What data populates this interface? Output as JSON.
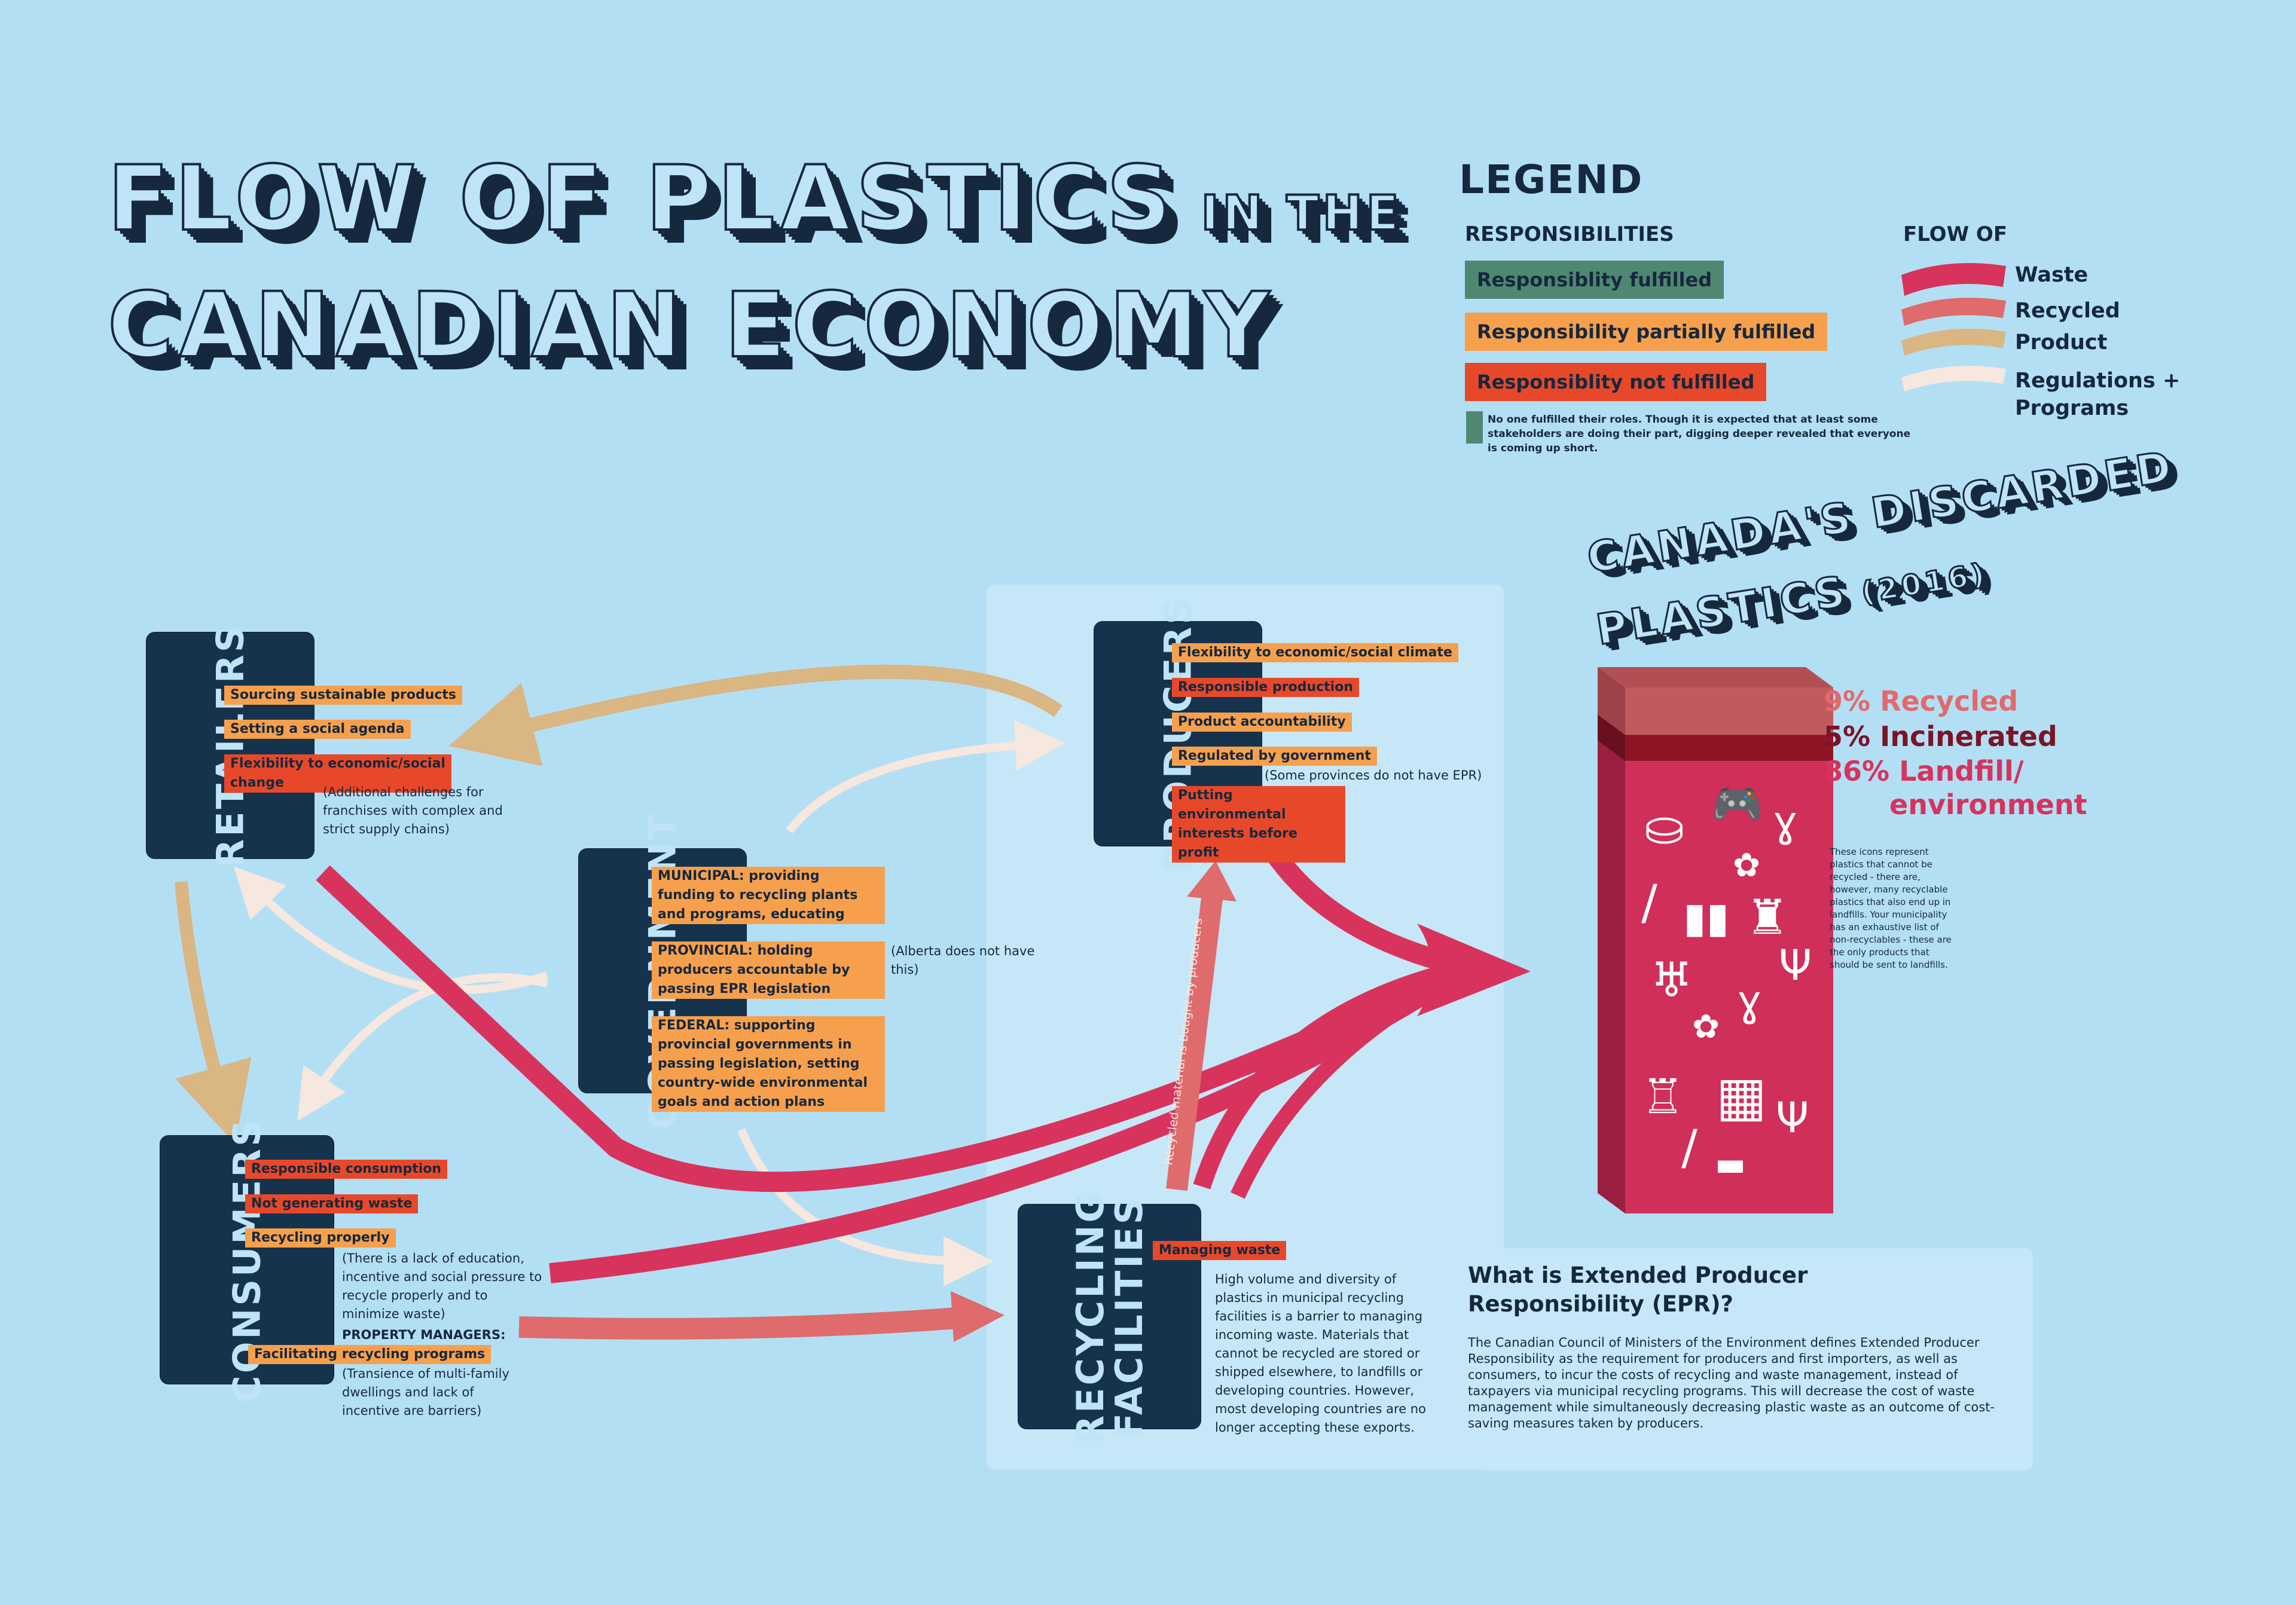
{
  "title": {
    "line1_main": "FLOW OF PLASTICS",
    "line1_small": "IN THE",
    "line2": "CANADIAN ECONOMY"
  },
  "legend": {
    "heading": "LEGEND",
    "responsibilities_heading": "RESPONSIBILITIES",
    "fulfilled": "Responsiblity fulfilled",
    "partially": "Responsibility partially  fulfilled",
    "not_fulfilled": "Responsiblity not fulfilled",
    "note": "No one fulfilled their roles. Though it is expected that at least some stakeholders are doing their part, digging deeper revealed that everyone is coming up short.",
    "flow_heading": "FLOW OF",
    "waste": "Waste",
    "recycled": "Recycled",
    "product": "Product",
    "regulations": "Regulations + Programs"
  },
  "colors": {
    "background": "#b3dff4",
    "fulfilled": "#4f8872",
    "partially": "#f6a04d",
    "not_fulfilled": "#e8482a",
    "waste": "#d7335d",
    "recycled": "#df6b6c",
    "product": "#d9b682",
    "regulations": "#f6e8de",
    "actor_box": "#16334d"
  },
  "retailers": {
    "label": "RETAILERS",
    "items": [
      "Sourcing sustainable products",
      "Setting a social agenda",
      "Flexibility to economic/social change"
    ],
    "note": "(Additional challenges for franchises with complex and strict supply chains)"
  },
  "producers": {
    "label": "PRODUCERS",
    "items": [
      "Flexibility to economic/social climate",
      "Responsible production",
      "Product accountability",
      "Regulated by government",
      "Putting environmental interests before profit"
    ],
    "note": "(Some provinces do not have EPR)"
  },
  "government": {
    "label": "GOVERNMENT",
    "municipal": "MUNICIPAL: providing funding to recycling plants and programs, educating",
    "provincial": "PROVINCIAL: holding producers accountable by passing EPR legislation",
    "provincial_note": "(Alberta does not have this)",
    "federal": "FEDERAL: supporting provincial governments in passing legislation, setting country-wide environmental goals and action plans"
  },
  "consumers": {
    "label": "CONSUMERS",
    "items": [
      "Responsible consumption",
      "Not generating waste",
      "Recycling properly"
    ],
    "note": "(There is a lack of education, incentive and social pressure to recycle properly and to minimize waste)",
    "pm_heading": "PROPERTY  MANAGERS:",
    "pm_item": "Facilitating recycling programs",
    "pm_note": "(Transience of multi-family dwellings and  lack of incentive are barriers)"
  },
  "recycling": {
    "label_line1": "RECYCLING",
    "label_line2": "FACILITIES",
    "item": "Managing waste",
    "note": "High volume and diversity of plastics in municipal recycling facilities is a barrier to managing incoming waste. Materials that cannot be recycled are stored or shipped elsewhere, to landfills or developing countries. However, most developing countries are no longer accepting these exports.",
    "arrow_text": "Recycled material is bought by producers"
  },
  "discarded": {
    "title_line1": "CANADA'S DISCARDED",
    "title_line2": "PLASTICS",
    "year": "(2016)",
    "recycled": "9% Recycled",
    "incinerated": "5% Incinerated",
    "landfill_1": "86% Landfill/",
    "landfill_2": "environment",
    "icons_note": "These icons represent plastics that cannot be recycled - there are, however, many recyclable plastics that also end up in landfills. Your municipality has an exhaustive list of non-recyclables - these are the only products that should be sent to landfills.",
    "icons": [
      "trash-bag-icon",
      "game-controller-icon",
      "spoon-icon",
      "candy-icon",
      "knife-icon",
      "tubes-icon",
      "bottle-icon",
      "fork-icon",
      "cup-icon",
      "spoon-icon",
      "candy-icon",
      "pump-bottle-icon",
      "chip-bag-icon",
      "fork-icon",
      "knife-icon",
      "container-icon"
    ],
    "chart_data": {
      "type": "stacked-bar",
      "categories": [
        "Recycled",
        "Incinerated",
        "Landfill/environment"
      ],
      "values": [
        9,
        5,
        86
      ],
      "unit": "%"
    }
  },
  "epr": {
    "question": "What is Extended Producer Responsibility (EPR)?",
    "body": "The Canadian Council of Ministers of the Environment defines Extended Producer Responsibility as the requirement for producers and first importers, as well as consumers, to incur the costs of recycling and waste management, instead of taxpayers via municipal recycling programs. This will decrease the cost of waste management while simultaneously decreasing plastic waste as an outcome of cost-saving measures taken by producers."
  }
}
